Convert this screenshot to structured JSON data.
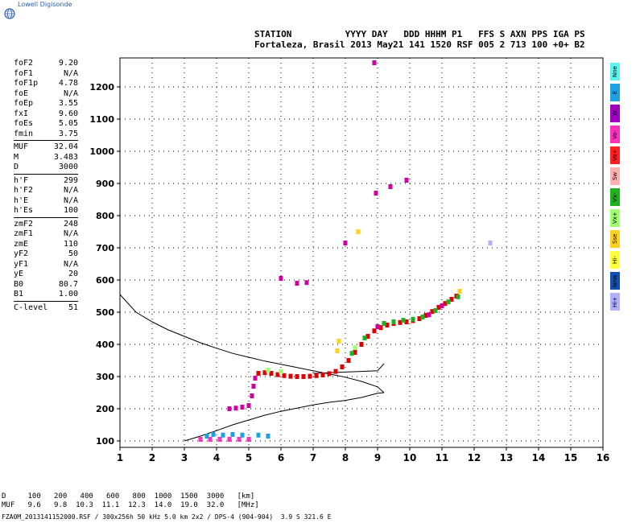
{
  "logo": {
    "text": "Lowell Digisonde"
  },
  "header": {
    "line1": "STATION          YYYY DAY   DDD HHHM P1   FFS S AXN PPS IGA PS",
    "line2": "Fortaleza, Brasil 2013 May21 141 1520 RSF 005 2 713 100 +0+ B2"
  },
  "params": [
    {
      "k": "foF2",
      "v": "9.20"
    },
    {
      "k": "foF1",
      "v": "N/A"
    },
    {
      "k": "foF1p",
      "v": "4.78"
    },
    {
      "k": "foE",
      "v": "N/A"
    },
    {
      "k": "foEp",
      "v": "3.55"
    },
    {
      "k": "fxI",
      "v": "9.60"
    },
    {
      "k": "foEs",
      "v": "5.05"
    },
    {
      "k": "fmin",
      "v": "3.75"
    },
    {
      "k": "MUF",
      "v": "32.04"
    },
    {
      "k": "M",
      "v": "3.483"
    },
    {
      "k": "D",
      "v": "3000"
    },
    {
      "k": "h'F",
      "v": "299"
    },
    {
      "k": "h'F2",
      "v": "N/A"
    },
    {
      "k": "h'E",
      "v": "N/A"
    },
    {
      "k": "h'Es",
      "v": "100"
    },
    {
      "k": "zmF2",
      "v": "248"
    },
    {
      "k": "zmF1",
      "v": "N/A"
    },
    {
      "k": "zmE",
      "v": "110"
    },
    {
      "k": "yF2",
      "v": "50"
    },
    {
      "k": "yF1",
      "v": "N/A"
    },
    {
      "k": "yE",
      "v": "20"
    },
    {
      "k": "B0",
      "v": "80.7"
    },
    {
      "k": "B1",
      "v": "1.00"
    },
    {
      "k": "C-level",
      "v": "51"
    }
  ],
  "legend": [
    {
      "label": "Nne",
      "color": "#5ff0f0"
    },
    {
      "label": "E",
      "color": "#1fa0e0"
    },
    {
      "label": "W",
      "color": "#a000c0"
    },
    {
      "label": "Vo-",
      "color": "#ff30c0"
    },
    {
      "label": "Vo+",
      "color": "#ff2020"
    },
    {
      "label": "Sw",
      "color": "#ffb0b0"
    },
    {
      "label": "Vx-",
      "color": "#20b020"
    },
    {
      "label": "Vx+",
      "color": "#a0ff70"
    },
    {
      "label": "Sse",
      "color": "#ffd020"
    },
    {
      "label": "Hi-",
      "color": "#ffff40"
    },
    {
      "label": "Nnw",
      "color": "#1050b0"
    },
    {
      "label": "Hi+",
      "color": "#b0b0ff"
    }
  ],
  "table": {
    "row1": "D     100   200   400   600   800  1000  1500  3000   [km]",
    "row2": "MUF   9.6   9.8  10.3  11.1  12.3  14.0  19.0  32.0   [MHz]"
  },
  "footer": "FZA0M_2013141152000.RSF / 300x256h 50 kHz 5.0 km 2x2 / DPS-4 (904-904)  3.9 S 321.6 E",
  "chart_data": {
    "type": "scatter",
    "xlim": [
      1,
      16
    ],
    "ylim": [
      80,
      1290
    ],
    "x_ticks": [
      1,
      2,
      3,
      4,
      5,
      6,
      7,
      8,
      9,
      10,
      11,
      12,
      13,
      14,
      15,
      16
    ],
    "y_ticks": [
      100,
      200,
      300,
      400,
      500,
      600,
      700,
      800,
      900,
      1000,
      1100,
      1200
    ],
    "grid": true,
    "series": [
      {
        "color": "#e00000",
        "points": [
          [
            5.3,
            310
          ],
          [
            5.5,
            312
          ],
          [
            5.7,
            310
          ],
          [
            5.9,
            306
          ],
          [
            6.1,
            303
          ],
          [
            6.3,
            301
          ],
          [
            6.5,
            300
          ],
          [
            6.7,
            300
          ],
          [
            6.9,
            301
          ],
          [
            7.1,
            303
          ],
          [
            7.3,
            305
          ],
          [
            7.5,
            309
          ],
          [
            7.7,
            316
          ],
          [
            7.9,
            330
          ],
          [
            8.1,
            350
          ],
          [
            8.3,
            375
          ],
          [
            8.5,
            400
          ],
          [
            8.7,
            425
          ],
          [
            8.9,
            442
          ],
          [
            9.1,
            452
          ],
          [
            9.3,
            460
          ],
          [
            9.5,
            465
          ],
          [
            9.7,
            468
          ],
          [
            9.9,
            470
          ],
          [
            10.1,
            474
          ],
          [
            10.3,
            480
          ],
          [
            10.5,
            490
          ],
          [
            10.7,
            502
          ],
          [
            10.9,
            515
          ],
          [
            11.1,
            527
          ],
          [
            11.3,
            540
          ],
          [
            11.45,
            550
          ]
        ]
      },
      {
        "color": "#20b020",
        "points": [
          [
            9.2,
            465
          ],
          [
            9.5,
            470
          ],
          [
            9.8,
            475
          ],
          [
            10.1,
            478
          ],
          [
            10.4,
            485
          ],
          [
            10.8,
            505
          ],
          [
            11.2,
            532
          ],
          [
            11.5,
            548
          ],
          [
            8.2,
            372
          ],
          [
            8.6,
            420
          ]
        ]
      },
      {
        "color": "#d000a0",
        "points": [
          [
            4.4,
            200
          ],
          [
            4.6,
            202
          ],
          [
            4.8,
            205
          ],
          [
            5.0,
            210
          ],
          [
            5.1,
            240
          ],
          [
            5.15,
            270
          ],
          [
            5.2,
            295
          ],
          [
            8.9,
            1275
          ],
          [
            8.95,
            870
          ],
          [
            9.4,
            890
          ],
          [
            9.9,
            910
          ],
          [
            8.0,
            715
          ],
          [
            6.0,
            605
          ],
          [
            6.5,
            590
          ],
          [
            6.8,
            592
          ],
          [
            9.0,
            455
          ],
          [
            10.6,
            492
          ],
          [
            11.0,
            520
          ]
        ]
      },
      {
        "color": "#ff30c0",
        "points": [
          [
            3.5,
            105
          ],
          [
            3.8,
            105
          ],
          [
            4.1,
            105
          ],
          [
            4.4,
            105
          ],
          [
            4.7,
            105
          ],
          [
            5.0,
            105
          ]
        ]
      },
      {
        "color": "#1fa0e0",
        "points": [
          [
            3.9,
            120
          ],
          [
            4.2,
            118
          ],
          [
            4.5,
            120
          ],
          [
            4.8,
            118
          ],
          [
            5.3,
            118
          ],
          [
            5.6,
            115
          ],
          [
            3.7,
            115
          ]
        ]
      },
      {
        "color": "#ffd020",
        "points": [
          [
            11.55,
            565
          ],
          [
            7.8,
            410
          ],
          [
            7.75,
            380
          ],
          [
            8.4,
            750
          ]
        ]
      },
      {
        "color": "#b0b0ff",
        "points": [
          [
            12.5,
            715
          ]
        ]
      },
      {
        "color": "#a0ff70",
        "points": [
          [
            8.3,
            390
          ],
          [
            5.6,
            320
          ],
          [
            6.0,
            316
          ]
        ]
      }
    ],
    "lines": [
      {
        "color": "#000000",
        "points": [
          [
            1.0,
            555
          ],
          [
            1.5,
            500
          ],
          [
            2.0,
            470
          ],
          [
            2.5,
            445
          ],
          [
            3.0,
            425
          ],
          [
            3.5,
            405
          ],
          [
            4.0,
            388
          ],
          [
            4.5,
            372
          ],
          [
            5.0,
            360
          ],
          [
            5.5,
            348
          ],
          [
            6.0,
            338
          ],
          [
            6.5,
            328
          ],
          [
            7.0,
            318
          ],
          [
            7.5,
            308
          ],
          [
            8.0,
            298
          ],
          [
            8.5,
            285
          ],
          [
            9.0,
            268
          ],
          [
            9.2,
            250
          ]
        ]
      },
      {
        "color": "#000000",
        "points": [
          [
            3.0,
            100
          ],
          [
            3.5,
            115
          ],
          [
            4.0,
            132
          ],
          [
            4.5,
            150
          ],
          [
            5.0,
            165
          ],
          [
            5.5,
            180
          ],
          [
            6.0,
            192
          ],
          [
            6.5,
            202
          ],
          [
            7.0,
            212
          ],
          [
            7.5,
            220
          ],
          [
            8.0,
            226
          ],
          [
            8.5,
            235
          ],
          [
            9.0,
            248
          ],
          [
            9.2,
            250
          ]
        ]
      },
      {
        "color": "#000000",
        "points": [
          [
            7.0,
            310
          ],
          [
            7.5,
            312
          ],
          [
            8.0,
            314
          ],
          [
            8.5,
            316
          ],
          [
            9.0,
            318
          ],
          [
            9.2,
            340
          ]
        ]
      }
    ]
  }
}
